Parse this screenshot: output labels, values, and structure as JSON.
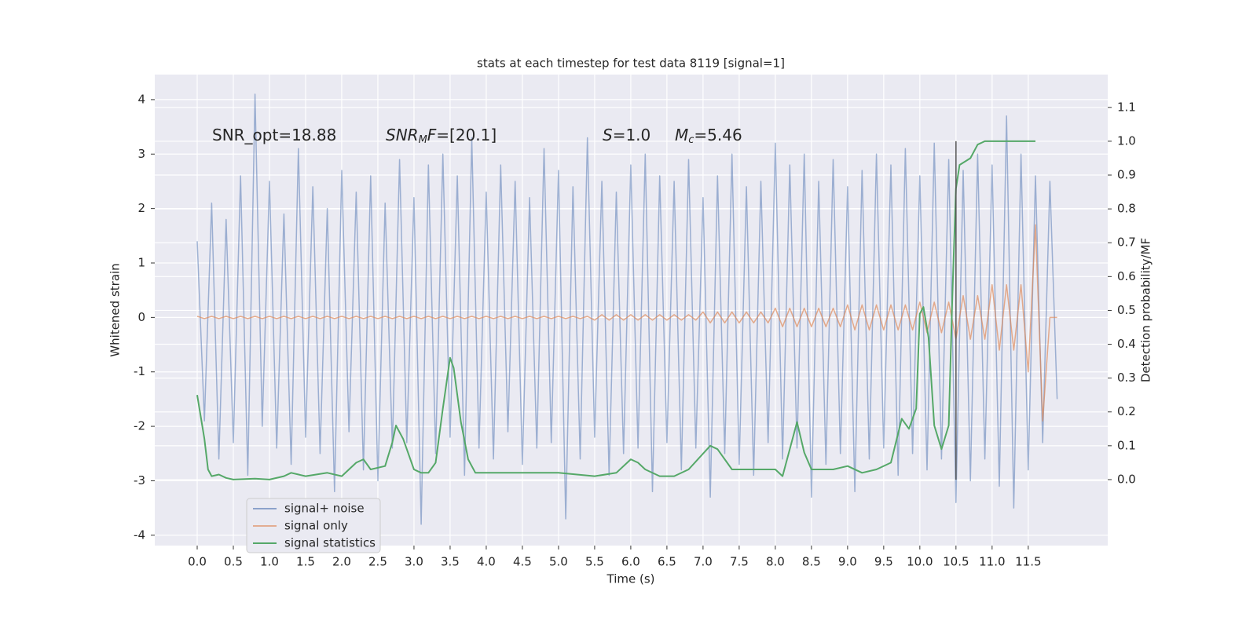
{
  "chart_data": {
    "type": "line",
    "title": "stats at each timestep for test data 8119 [signal=1]",
    "x_label": "Time (s)",
    "y_label": "Whitened strain",
    "y2_label": "Detection probability/MF",
    "xlim": [
      -0.587,
      12.6
    ],
    "ylim": [
      -4.19,
      4.46
    ],
    "y2lim": [
      -0.195,
      1.197
    ],
    "xticks": [
      {
        "value": 0,
        "label": "0.0"
      },
      0.5,
      {
        "value": 1,
        "label": "1.0"
      },
      1.5,
      {
        "value": 2,
        "label": "2.0"
      },
      2.5,
      {
        "value": 3,
        "label": "3.0"
      },
      3.5,
      {
        "value": 4,
        "label": "4.0"
      },
      4.5,
      {
        "value": 5,
        "label": "5.0"
      },
      5.5,
      {
        "value": 6,
        "label": "6.0"
      },
      6.5,
      {
        "value": 7,
        "label": "7.0"
      },
      7.5,
      {
        "value": 8,
        "label": "8.0"
      },
      8.5,
      {
        "value": 9,
        "label": "9.0"
      },
      9.5,
      {
        "value": 10,
        "label": "10.0"
      },
      10.5,
      {
        "value": 11,
        "label": "11.0"
      },
      11.5
    ],
    "yticks": [
      -4,
      -3,
      -2,
      -1,
      0,
      1,
      2,
      3,
      4
    ],
    "y2ticks": [
      {
        "value": 0,
        "label": "0.0"
      },
      0.1,
      0.2,
      0.3,
      0.4,
      0.5,
      0.6,
      0.7,
      0.8,
      0.9,
      {
        "value": 1,
        "label": "1.0"
      },
      1.1
    ],
    "grid": true,
    "legend": "lower left",
    "x": [
      0,
      0.1,
      0.2,
      0.3,
      0.4,
      0.5,
      0.6,
      0.7,
      0.8,
      0.9,
      1,
      1.1,
      1.2,
      1.3,
      1.4,
      1.5,
      1.6,
      1.7,
      1.8,
      1.9,
      2,
      2.1,
      2.2,
      2.3,
      2.4,
      2.5,
      2.6,
      2.7,
      2.8,
      2.9,
      3,
      3.1,
      3.2,
      3.3,
      3.4,
      3.5,
      3.6,
      3.7,
      3.8,
      3.9,
      4,
      4.1,
      4.2,
      4.3,
      4.4,
      4.5,
      4.6,
      4.7,
      4.8,
      4.9,
      5,
      5.1,
      5.2,
      5.3,
      5.4,
      5.5,
      5.6,
      5.7,
      5.8,
      5.9,
      6,
      6.1,
      6.2,
      6.3,
      6.4,
      6.5,
      6.6,
      6.7,
      6.8,
      6.9,
      7,
      7.1,
      7.2,
      7.3,
      7.4,
      7.5,
      7.6,
      7.7,
      7.8,
      7.9,
      8,
      8.1,
      8.2,
      8.3,
      8.4,
      8.5,
      8.6,
      8.7,
      8.8,
      8.9,
      9,
      9.1,
      9.2,
      9.3,
      9.4,
      9.5,
      9.6,
      9.7,
      9.8,
      9.9,
      10,
      10.1,
      10.2,
      10.3,
      10.4,
      10.5,
      10.6,
      10.7,
      10.8,
      10.9,
      11,
      11.1,
      11.2,
      11.3,
      11.4,
      11.5,
      11.6,
      11.7,
      11.8,
      11.9
    ],
    "series": [
      {
        "name": "signal+ noise",
        "color": "#4c72b0",
        "values": [
          1.4,
          -1.9,
          2.1,
          -2.6,
          1.8,
          -2.3,
          2.6,
          -2.9,
          4.1,
          -2.0,
          2.5,
          -2.4,
          1.9,
          -2.7,
          3.1,
          -2.2,
          2.4,
          -2.5,
          2.0,
          -3.2,
          2.7,
          -2.1,
          2.3,
          -2.8,
          2.6,
          -3.0,
          2.1,
          -2.4,
          2.9,
          -2.3,
          2.2,
          -3.8,
          2.8,
          -2.5,
          3.0,
          -2.2,
          2.6,
          -2.9,
          3.3,
          -2.4,
          2.3,
          -2.6,
          2.8,
          -2.1,
          2.5,
          -2.7,
          2.2,
          -2.4,
          3.1,
          -2.3,
          2.7,
          -3.7,
          2.4,
          -2.6,
          3.3,
          -2.2,
          2.5,
          -2.9,
          2.3,
          -2.5,
          2.8,
          -2.4,
          3.0,
          -3.2,
          2.6,
          -2.3,
          2.5,
          -2.8,
          2.9,
          -2.4,
          2.2,
          -3.3,
          2.6,
          -2.5,
          3.0,
          -2.7,
          2.4,
          -2.9,
          2.5,
          -2.3,
          3.2,
          -2.6,
          2.8,
          -2.4,
          3.0,
          -3.3,
          2.5,
          -2.7,
          2.9,
          -2.5,
          2.4,
          -3.2,
          2.7,
          -2.6,
          3.0,
          -2.4,
          2.8,
          -2.9,
          3.1,
          -2.5,
          2.6,
          -2.8,
          3.2,
          -2.6,
          2.9,
          -3.4,
          2.7,
          -3.0,
          3.0,
          -2.6,
          2.8,
          -3.1,
          3.7,
          -3.5,
          3.0,
          -2.8,
          2.6,
          -2.3,
          2.5,
          -1.5
        ]
      },
      {
        "name": "signal only",
        "color": "#dd8452",
        "values": [
          0.02,
          -0.02,
          0.02,
          -0.02,
          0.02,
          -0.02,
          0.02,
          -0.02,
          0.02,
          -0.02,
          0.02,
          -0.02,
          0.02,
          -0.02,
          0.02,
          -0.02,
          0.02,
          -0.02,
          0.02,
          -0.02,
          0.02,
          -0.02,
          0.02,
          -0.02,
          0.02,
          -0.02,
          0.02,
          -0.02,
          0.02,
          -0.02,
          0.02,
          -0.02,
          0.02,
          -0.02,
          0.02,
          -0.02,
          0.02,
          -0.02,
          0.02,
          -0.02,
          0.02,
          -0.02,
          0.02,
          -0.02,
          0.02,
          -0.02,
          0.02,
          -0.02,
          0.02,
          -0.02,
          0.02,
          -0.02,
          0.02,
          -0.02,
          0.02,
          -0.05,
          0.05,
          -0.05,
          0.05,
          -0.05,
          0.05,
          -0.05,
          0.05,
          -0.05,
          0.05,
          -0.05,
          0.05,
          -0.05,
          0.05,
          -0.05,
          0.1,
          -0.1,
          0.1,
          -0.1,
          0.1,
          -0.1,
          0.1,
          -0.1,
          0.1,
          -0.1,
          0.17,
          -0.17,
          0.17,
          -0.17,
          0.17,
          -0.17,
          0.17,
          -0.17,
          0.17,
          -0.17,
          0.23,
          -0.23,
          0.23,
          -0.23,
          0.23,
          -0.23,
          0.23,
          -0.23,
          0.23,
          -0.23,
          0.28,
          -0.28,
          0.28,
          -0.28,
          0.28,
          -0.4,
          0.4,
          -0.4,
          0.4,
          -0.4,
          0.6,
          -0.6,
          0.6,
          -0.6,
          0.6,
          -1.0,
          1.7,
          -1.9,
          0,
          0
        ]
      },
      {
        "name": "signal statistics",
        "color": "#55a868",
        "axis": "y2",
        "x": [
          0,
          0.1,
          0.15,
          0.2,
          0.3,
          0.4,
          0.5,
          0.8,
          1.0,
          1.2,
          1.3,
          1.5,
          1.8,
          2.0,
          2.2,
          2.3,
          2.4,
          2.6,
          2.7,
          2.75,
          2.85,
          3.0,
          3.1,
          3.2,
          3.3,
          3.4,
          3.5,
          3.55,
          3.65,
          3.75,
          3.85,
          4.0,
          4.5,
          5.0,
          5.5,
          5.8,
          6.0,
          6.1,
          6.2,
          6.4,
          6.6,
          6.8,
          7.1,
          7.2,
          7.4,
          7.6,
          8.0,
          8.1,
          8.3,
          8.4,
          8.5,
          8.8,
          9.0,
          9.2,
          9.4,
          9.6,
          9.75,
          9.85,
          9.95,
          10.0,
          10.05,
          10.12,
          10.2,
          10.3,
          10.4,
          10.45,
          10.5,
          10.55,
          10.7,
          10.8,
          10.9,
          11.6
        ],
        "values": [
          0.25,
          0.12,
          0.03,
          0.01,
          0.015,
          0.005,
          0.0,
          0.003,
          0.0,
          0.01,
          0.02,
          0.01,
          0.02,
          0.01,
          0.05,
          0.06,
          0.03,
          0.04,
          0.11,
          0.16,
          0.12,
          0.03,
          0.02,
          0.02,
          0.05,
          0.21,
          0.36,
          0.33,
          0.17,
          0.06,
          0.02,
          0.02,
          0.02,
          0.02,
          0.01,
          0.02,
          0.06,
          0.05,
          0.03,
          0.01,
          0.01,
          0.03,
          0.1,
          0.09,
          0.03,
          0.03,
          0.03,
          0.01,
          0.17,
          0.08,
          0.03,
          0.03,
          0.04,
          0.02,
          0.03,
          0.05,
          0.18,
          0.15,
          0.21,
          0.49,
          0.51,
          0.42,
          0.16,
          0.09,
          0.16,
          0.54,
          0.86,
          0.93,
          0.95,
          0.99,
          1.0,
          1.0
        ]
      }
    ],
    "vline": {
      "x": 10.5,
      "y2range": [
        0,
        1.0
      ],
      "color": "#555555"
    },
    "annotations": [
      [
        {
          "text": "SNR_opt=18.88"
        }
      ],
      [
        {
          "text": "SNR",
          "style": "italic"
        },
        {
          "text": "M",
          "style": "sub"
        },
        {
          "text": "F",
          "style": "italic"
        },
        {
          "text": "=[20.1]"
        }
      ],
      [
        {
          "text": "S",
          "style": "italic"
        },
        {
          "text": "=1.0"
        }
      ],
      [
        {
          "text": "M",
          "style": "italic"
        },
        {
          "text": "c",
          "style": "sub"
        },
        {
          "text": "=5.46"
        }
      ]
    ]
  }
}
